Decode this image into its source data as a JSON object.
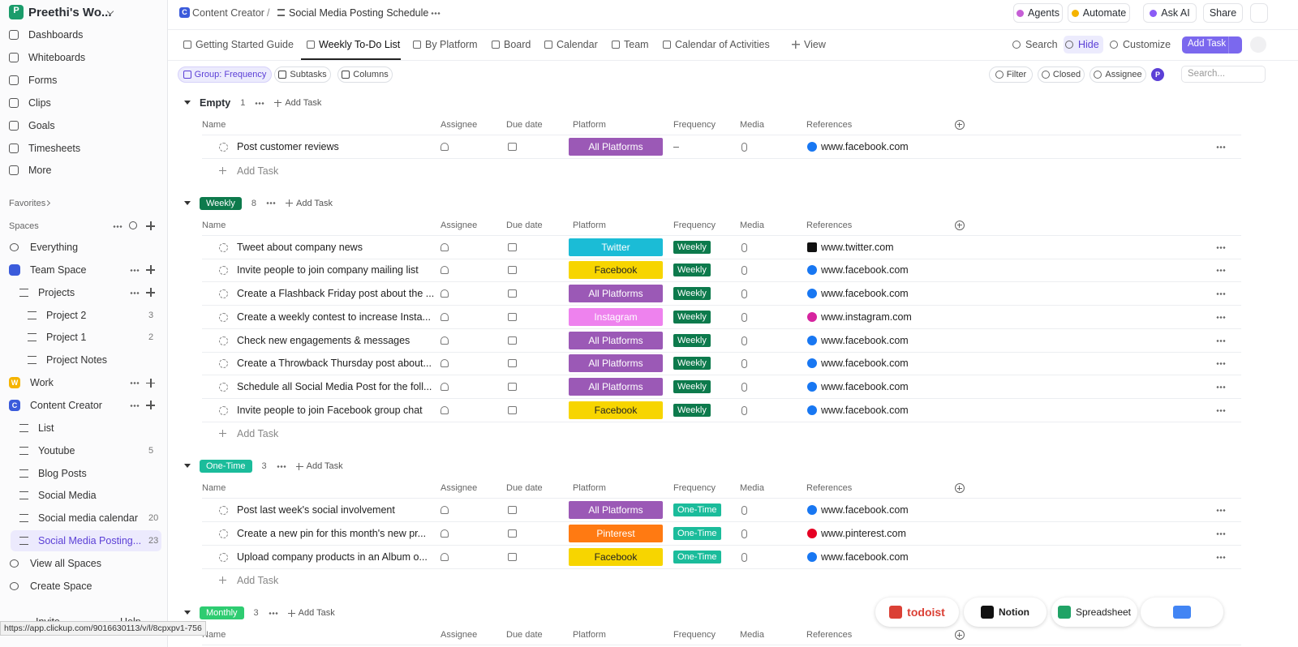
{
  "workspace": {
    "initial": "P",
    "name": "Preethi's Wo..."
  },
  "breadcrumb": {
    "space_initial": "C",
    "space": "Content Creator",
    "separator": "/",
    "list": "Social Media Posting Schedule"
  },
  "top_actions": [
    "Agents",
    "Automate",
    "Ask AI",
    "Share"
  ],
  "sidebar": {
    "nav": [
      "Dashboards",
      "Whiteboards",
      "Forms",
      "Clips",
      "Goals",
      "Timesheets",
      "More"
    ],
    "favorites": "Favorites",
    "spaces": "Spaces",
    "tree": [
      {
        "label": "Everything",
        "level": 0
      },
      {
        "label": "Team Space",
        "level": 0,
        "badge_color": "#3b5bdb"
      },
      {
        "label": "Projects",
        "level": 1
      },
      {
        "label": "Project 2",
        "level": 2,
        "count": 3
      },
      {
        "label": "Project 1",
        "level": 2,
        "count": 2
      },
      {
        "label": "Project Notes",
        "level": 2
      },
      {
        "label": "Work",
        "level": 0,
        "badge": "W",
        "badge_color": "#f5b400"
      },
      {
        "label": "Content Creator",
        "level": 0,
        "badge": "C",
        "badge_color": "#3b5bdb"
      },
      {
        "label": "List",
        "level": 1
      },
      {
        "label": "Youtube",
        "level": 1,
        "count": 5
      },
      {
        "label": "Blog Posts",
        "level": 1
      },
      {
        "label": "Social Media",
        "level": 1
      },
      {
        "label": "Social media calendar",
        "level": 1,
        "count": 20
      },
      {
        "label": "Social Media Posting...",
        "level": 1,
        "count": 23,
        "selected": true
      },
      {
        "label": "View all Spaces",
        "level": 0
      },
      {
        "label": "Create Space",
        "level": 0
      }
    ],
    "footer": [
      "Invite",
      "Help"
    ]
  },
  "tabs": [
    "Getting Started Guide",
    "Weekly To-Do List",
    "By Platform",
    "Board",
    "Calendar",
    "Team",
    "Calendar of Activities",
    "View"
  ],
  "active_tab": 1,
  "tab_actions": [
    "Search",
    "Hide",
    "Customize"
  ],
  "add_task_button": "Add Task",
  "toolbar": [
    "Group: Frequency",
    "Subtasks",
    "Columns"
  ],
  "filters": [
    "Filter",
    "Closed",
    "Assignee"
  ],
  "avatar": "P",
  "search_placeholder": "Search...",
  "columns": [
    "Name",
    "Assignee",
    "Due date",
    "Platform",
    "Frequency",
    "Media",
    "References"
  ],
  "add_task": "Add Task",
  "groups": [
    {
      "name": "Empty",
      "count": 1,
      "tasks": [
        {
          "name": "Post customer reviews",
          "platform": "All Platforms",
          "platform_color": "#9b59b6",
          "frequency": "–",
          "reference": "www.facebook.com",
          "ref_color": "#1877f2"
        }
      ]
    },
    {
      "name": "Weekly",
      "count": 8,
      "color": "#0d7a4c",
      "tasks": [
        {
          "name": "Tweet about company news",
          "platform": "Twitter",
          "platform_color": "#1bbcd6",
          "frequency": "Weekly",
          "reference": "www.twitter.com",
          "ref_color": "#111111"
        },
        {
          "name": "Invite people to join company mailing list",
          "platform": "Facebook",
          "platform_color": "#f7d500",
          "frequency": "Weekly",
          "reference": "www.facebook.com",
          "ref_color": "#1877f2"
        },
        {
          "name": "Create a Flashback Friday post about the ...",
          "platform": "All Platforms",
          "platform_color": "#9b59b6",
          "frequency": "Weekly",
          "reference": "www.facebook.com",
          "ref_color": "#1877f2"
        },
        {
          "name": "Create a weekly contest to increase Insta...",
          "platform": "Instagram",
          "platform_color": "#ee82ee",
          "frequency": "Weekly",
          "reference": "www.instagram.com",
          "ref_color": "#d6249f"
        },
        {
          "name": "Check new engagements & messages",
          "platform": "All Platforms",
          "platform_color": "#9b59b6",
          "frequency": "Weekly",
          "reference": "www.facebook.com",
          "ref_color": "#1877f2"
        },
        {
          "name": "Create a Throwback Thursday post about...",
          "platform": "All Platforms",
          "platform_color": "#9b59b6",
          "frequency": "Weekly",
          "reference": "www.facebook.com",
          "ref_color": "#1877f2"
        },
        {
          "name": "Schedule all Social Media Post for the foll...",
          "platform": "All Platforms",
          "platform_color": "#9b59b6",
          "frequency": "Weekly",
          "reference": "www.facebook.com",
          "ref_color": "#1877f2"
        },
        {
          "name": "Invite people to join Facebook group chat",
          "platform": "Facebook",
          "platform_color": "#f7d500",
          "frequency": "Weekly",
          "reference": "www.facebook.com",
          "ref_color": "#1877f2"
        }
      ]
    },
    {
      "name": "One-Time",
      "count": 3,
      "color": "#1bbc9b",
      "tasks": [
        {
          "name": "Post last week's social involvement",
          "platform": "All Platforms",
          "platform_color": "#9b59b6",
          "frequency": "One-Time",
          "reference": "www.facebook.com",
          "ref_color": "#1877f2"
        },
        {
          "name": "Create a new pin for this month's new pr...",
          "platform": "Pinterest",
          "platform_color": "#ff7a12",
          "frequency": "One-Time",
          "reference": "www.pinterest.com",
          "ref_color": "#e60023"
        },
        {
          "name": "Upload company products in an Album o...",
          "platform": "Facebook",
          "platform_color": "#f7d500",
          "frequency": "One-Time",
          "reference": "www.facebook.com",
          "ref_color": "#1877f2"
        }
      ]
    },
    {
      "name": "Monthly",
      "count": 3,
      "color": "#2ecc71",
      "tasks": []
    }
  ],
  "integrations": [
    "todoist",
    "Notion",
    "Spreadsheet"
  ],
  "status_url": "https://app.clickup.com/9016630113/v/l/8cpxpv1-756"
}
